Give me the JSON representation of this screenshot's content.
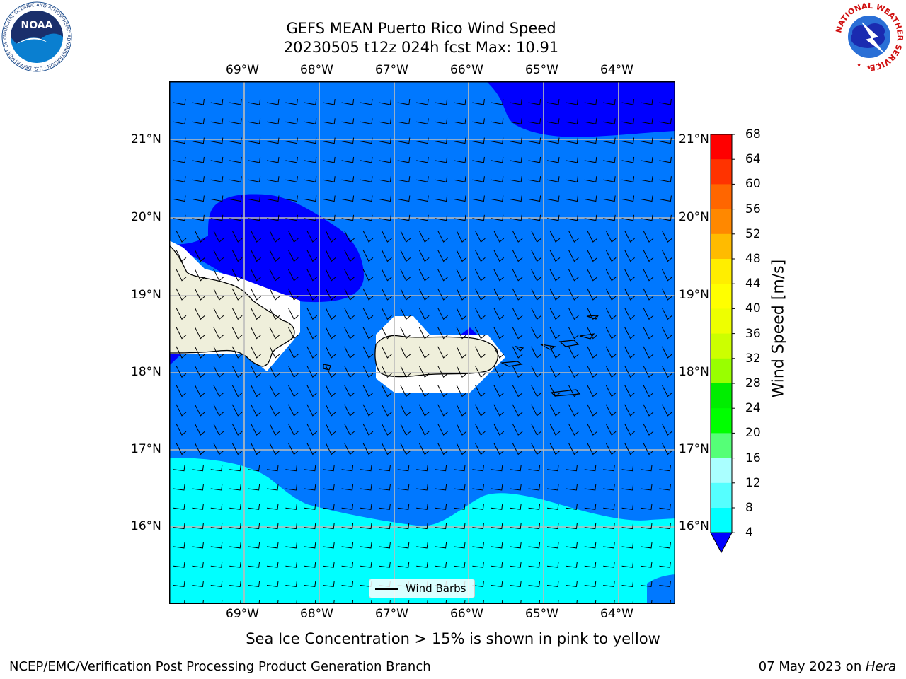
{
  "title": {
    "line1": "GEFS MEAN Puerto Rico Wind Speed",
    "line2": "20230505 t12z 024h fcst   Max: 10.91"
  },
  "logos": {
    "left_text": "NOAA",
    "left_ring_text": "NATIONAL OCEANIC AND ATMOSPHERIC ADMINISTRATION · U.S. DEPARTMENT OF COMMERCE",
    "right_ring_text": "NATIONAL WEATHER SERVICE"
  },
  "map": {
    "lon_labels": [
      "69°W",
      "68°W",
      "67°W",
      "66°W",
      "65°W",
      "64°W"
    ],
    "lat_labels": [
      "21°N",
      "20°N",
      "19°N",
      "18°N",
      "17°N",
      "16°N"
    ],
    "legend_label": "Wind Barbs",
    "colors": {
      "land": "#efefdb",
      "speed_0_4": "#0000ff",
      "speed_4_8": "#0078ff",
      "speed_8_12": "#00ffff",
      "ice_mask": "#ffffff",
      "grid": "#bbbbbb"
    }
  },
  "colorbar": {
    "label": "Wind Speed [m/s]",
    "ticks": [
      "68",
      "64",
      "60",
      "56",
      "52",
      "48",
      "44",
      "40",
      "36",
      "32",
      "28",
      "24",
      "20",
      "16",
      "12",
      "8",
      "4"
    ],
    "colors": [
      "#ff0000",
      "#ff3300",
      "#ff6600",
      "#ff8800",
      "#ffbb00",
      "#ffee00",
      "#ffff00",
      "#eeff00",
      "#ccff00",
      "#99ff00",
      "#00ee00",
      "#00ff00",
      "#55ff77",
      "#aaffff",
      "#55ffff",
      "#00ffff",
      "#0078ff"
    ],
    "under_color": "#0000ff"
  },
  "subtitle": "Sea Ice Concentration > 15% is shown in pink to yellow",
  "footer": {
    "left": "NCEP/EMC/Verification Post Processing Product Generation Branch",
    "date": "07 May 2023 on ",
    "machine": "Hera"
  }
}
